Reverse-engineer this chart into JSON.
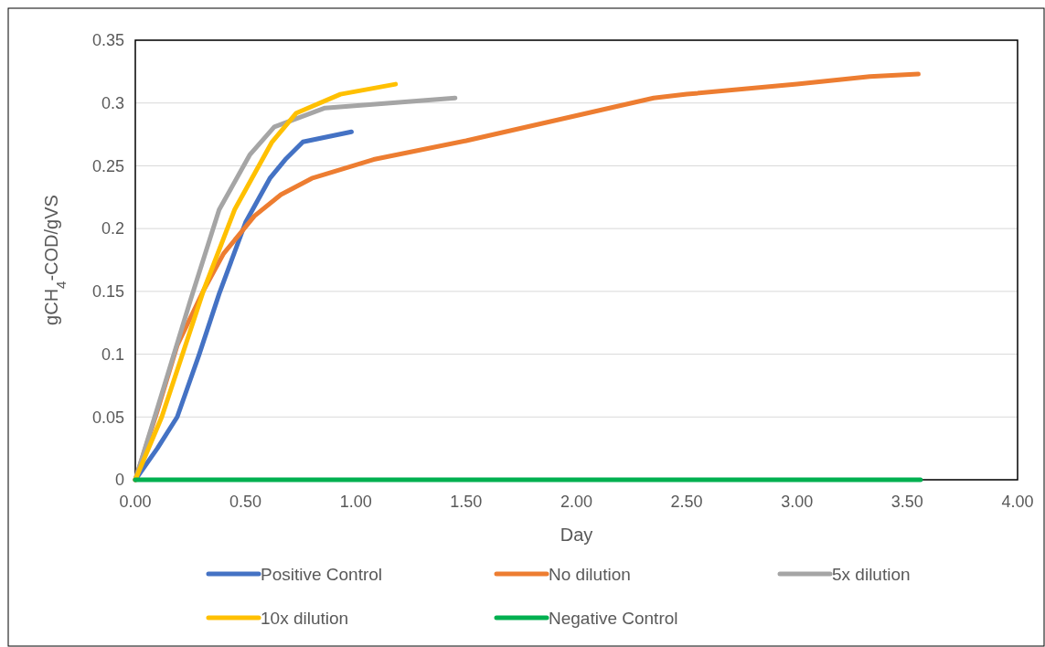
{
  "chart_data": {
    "type": "line",
    "xlabel": "Day",
    "ylabel": "gCH$_{4}$-COD/gVS",
    "xlim": [
      0,
      4
    ],
    "xticks": [
      {
        "value": 0,
        "label": "0.00"
      },
      {
        "value": 0.5,
        "label": "0.50"
      },
      {
        "value": 1,
        "label": "1.00"
      },
      {
        "value": 1.5,
        "label": "1.50"
      },
      {
        "value": 2,
        "label": "2.00"
      },
      {
        "value": 2.5,
        "label": "2.50"
      },
      {
        "value": 3,
        "label": "3.00"
      },
      {
        "value": 3.5,
        "label": "3.50"
      },
      {
        "value": 4,
        "label": "4.00"
      }
    ],
    "ylim": [
      0,
      0.35
    ],
    "yticks": [
      0,
      0.05,
      0.1,
      0.15,
      0.2,
      0.25,
      0.3,
      0.35
    ],
    "grid": "y",
    "legend": "bottom",
    "marker": "none",
    "line_style": "solid",
    "series": [
      {
        "name": "Positive Control",
        "color": "#4472c4",
        "x": [
          0,
          0.1,
          0.19,
          0.29,
          0.38,
          0.5,
          0.61,
          0.68,
          0.76,
          0.98
        ],
        "values": [
          0,
          0.025,
          0.05,
          0.1,
          0.148,
          0.205,
          0.24,
          0.255,
          0.269,
          0.277
        ]
      },
      {
        "name": "No dilution",
        "color": "#ed7d31",
        "x": [
          0,
          0.1,
          0.19,
          0.31,
          0.4,
          0.54,
          0.66,
          0.8,
          1.08,
          1.5,
          2,
          2.35,
          2.5,
          3,
          3.33,
          3.55
        ],
        "values": [
          0,
          0.055,
          0.107,
          0.151,
          0.18,
          0.21,
          0.227,
          0.24,
          0.255,
          0.27,
          0.29,
          0.304,
          0.307,
          0.315,
          0.321,
          0.323
        ]
      },
      {
        "name": "5x dilution",
        "color": "#a5a5a5",
        "x": [
          0,
          0.1,
          0.25,
          0.38,
          0.52,
          0.63,
          0.86,
          1.45
        ],
        "values": [
          0,
          0.057,
          0.143,
          0.215,
          0.259,
          0.281,
          0.296,
          0.304
        ]
      },
      {
        "name": "10x dilution",
        "color": "#ffc000",
        "x": [
          0,
          0.12,
          0.31,
          0.45,
          0.62,
          0.73,
          0.93,
          1.18
        ],
        "values": [
          0,
          0.05,
          0.151,
          0.215,
          0.269,
          0.292,
          0.307,
          0.315
        ]
      },
      {
        "name": "Negative Control",
        "color": "#00b050",
        "x": [
          0,
          3.56
        ],
        "values": [
          0,
          0
        ]
      }
    ]
  }
}
